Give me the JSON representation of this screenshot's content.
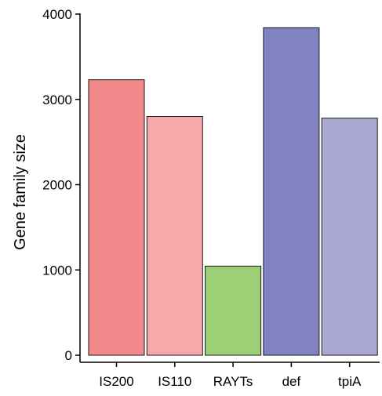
{
  "chart_data": {
    "type": "bar",
    "title": "",
    "xlabel": "",
    "ylabel": "Gene family size",
    "categories": [
      "IS200",
      "IS110",
      "RAYTs",
      "def",
      "tpiA"
    ],
    "values": [
      3230,
      2800,
      1045,
      3840,
      2780
    ],
    "colors": [
      "#F28A8C",
      "#F6A8AA",
      "#9DCF77",
      "#8083C0",
      "#AAA9D3"
    ],
    "ylim": [
      0,
      4000
    ],
    "yticks": [
      0,
      1000,
      2000,
      3000,
      4000
    ],
    "grid": false,
    "legend": "none"
  }
}
